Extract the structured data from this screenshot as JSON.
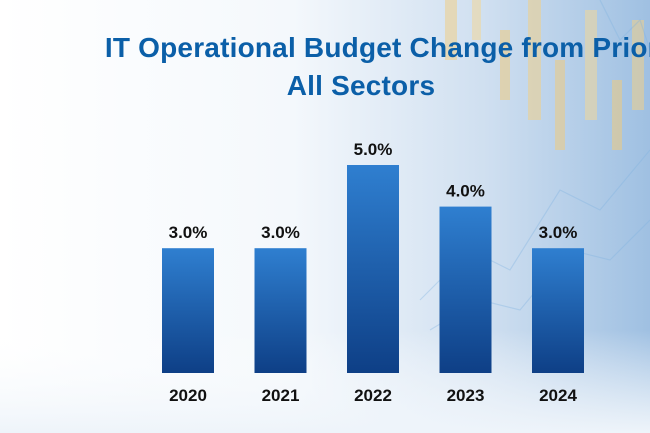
{
  "title_line1": "IT Operational Budget Change from Prior Yea",
  "title_line2": "All Sectors",
  "chart_data": {
    "type": "bar",
    "title": "IT Operational Budget Change from Prior Yea All Sectors",
    "categories": [
      "2020",
      "2021",
      "2022",
      "2023",
      "2024"
    ],
    "values": [
      3.0,
      3.0,
      5.0,
      4.0,
      3.0
    ],
    "value_labels": [
      "3.0%",
      "3.0%",
      "5.0%",
      "4.0%",
      "3.0%"
    ],
    "unit": "%",
    "ylim": [
      0,
      5.5
    ],
    "grid": false,
    "legend": "none",
    "colors": {
      "bar_top": "#2f7fd0",
      "bar_bottom": "#0e3f86",
      "title": "#0b5fa8",
      "axis": "#3a8ad6"
    }
  }
}
